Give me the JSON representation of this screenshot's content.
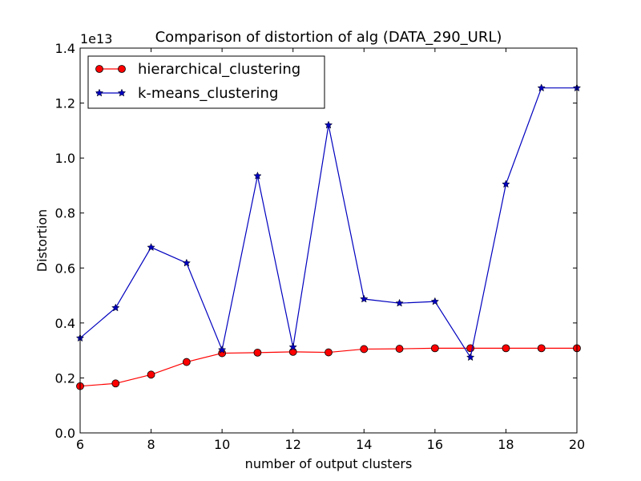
{
  "chart_data": {
    "type": "line",
    "title": "Comparison of distortion of alg (DATA_290_URL)",
    "xlabel": "number of output clusters",
    "ylabel": "Distortion",
    "y_offset_label": "1e13",
    "xlim": [
      6,
      20
    ],
    "ylim": [
      0,
      1.4
    ],
    "x_ticks": [
      "6",
      "8",
      "10",
      "12",
      "14",
      "16",
      "18",
      "20"
    ],
    "y_ticks": [
      "0.0",
      "0.2",
      "0.4",
      "0.6",
      "0.8",
      "1.0",
      "1.2",
      "1.4"
    ],
    "x": [
      6,
      7,
      8,
      9,
      10,
      11,
      12,
      13,
      14,
      15,
      16,
      17,
      18,
      19,
      20
    ],
    "legend_position": "top-left",
    "grid": false,
    "series": [
      {
        "name": "hierarchical_clustering",
        "color": "#ff0000",
        "marker": "circle",
        "values": [
          0.17,
          0.18,
          0.212,
          0.258,
          0.29,
          0.292,
          0.295,
          0.293,
          0.305,
          0.306,
          0.308,
          0.308,
          0.308,
          0.308,
          0.308
        ]
      },
      {
        "name": "k-means_clustering",
        "color": "#0000bf",
        "marker": "star",
        "values": [
          0.345,
          0.455,
          0.675,
          0.618,
          0.302,
          0.935,
          0.312,
          1.12,
          0.487,
          0.472,
          0.478,
          0.275,
          0.905,
          1.255,
          1.255
        ]
      }
    ]
  }
}
